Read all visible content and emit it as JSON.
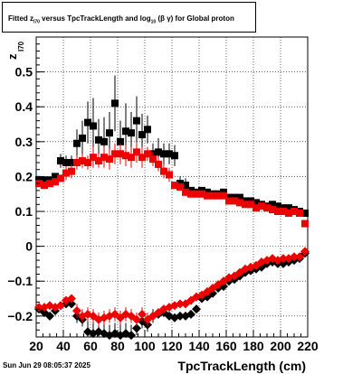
{
  "title": {
    "prefix": "Fitted  z",
    "z_sub": "I70",
    "middle": "  versus TpcTrackLength and log",
    "log_sub": "10",
    "suffix": " (β  γ) for Global proton"
  },
  "datestamp": "Sun Jun 29 08:05:37 2025",
  "chart_data": {
    "type": "scatter",
    "xlabel": "TpcTrackLength (cm)",
    "ylabel": "z",
    "ylabel_sub": "I70",
    "xlim": [
      20,
      220
    ],
    "ylim": [
      -0.26,
      0.6
    ],
    "xticks": [
      20,
      40,
      60,
      80,
      100,
      120,
      140,
      160,
      180,
      200,
      220
    ],
    "xtick_labels": [
      "20",
      "40",
      "60",
      "80",
      "100",
      "120",
      "140",
      "160",
      "180",
      "200",
      "220"
    ],
    "yticks": [
      -0.2,
      -0.1,
      0,
      0.1,
      0.2,
      0.3,
      0.4,
      0.5
    ],
    "ytick_labels": [
      "−0.2",
      "−0.1",
      "0",
      "0.1",
      "0.2",
      "0.3",
      "0.4",
      "0.5"
    ],
    "grid": true,
    "series": [
      {
        "color": "#000000",
        "marker": "square",
        "x": [
          22,
          26,
          30,
          34,
          38,
          42,
          46,
          50,
          54,
          58,
          62,
          66,
          70,
          74,
          78,
          82,
          86,
          90,
          94,
          98,
          102,
          106,
          110,
          114,
          118,
          122,
          126,
          130,
          134,
          138,
          142,
          146,
          150,
          154,
          158,
          162,
          166,
          170,
          174,
          178,
          182,
          186,
          190,
          194,
          198,
          202,
          206,
          210,
          214,
          218
        ],
        "y": [
          0.19,
          0.19,
          0.19,
          0.2,
          0.245,
          0.24,
          0.24,
          0.295,
          0.31,
          0.355,
          0.345,
          0.305,
          0.3,
          0.325,
          0.41,
          0.3,
          0.33,
          0.325,
          0.36,
          0.32,
          0.335,
          0.265,
          0.27,
          0.265,
          0.265,
          0.26,
          0.18,
          0.175,
          0.16,
          0.155,
          0.16,
          0.155,
          0.15,
          0.15,
          0.155,
          0.14,
          0.14,
          0.14,
          0.13,
          0.13,
          0.125,
          0.12,
          0.115,
          0.12,
          0.115,
          0.11,
          0.11,
          0.105,
          0.1,
          0.095
        ],
        "err": [
          0.01,
          0.01,
          0.01,
          0.01,
          0.02,
          0.02,
          0.02,
          0.04,
          0.05,
          0.06,
          0.08,
          0.06,
          0.07,
          0.06,
          0.08,
          0.06,
          0.08,
          0.06,
          0.07,
          0.06,
          0.04,
          0.03,
          0.04,
          0.03,
          0.03,
          0.03,
          0.02,
          0.02,
          0.01,
          0.01,
          0.01,
          0.01,
          0.01,
          0.01,
          0.01,
          0.01,
          0.01,
          0.01,
          0.01,
          0.01,
          0.01,
          0.01,
          0.01,
          0.01,
          0.01,
          0.01,
          0.01,
          0.01,
          0.01,
          0.01
        ]
      },
      {
        "color": "#ee0000",
        "marker": "square",
        "x": [
          22,
          26,
          30,
          34,
          38,
          42,
          46,
          50,
          54,
          58,
          62,
          66,
          70,
          74,
          78,
          82,
          86,
          90,
          94,
          98,
          102,
          106,
          110,
          114,
          118,
          122,
          126,
          130,
          134,
          138,
          142,
          146,
          150,
          154,
          158,
          162,
          166,
          170,
          174,
          178,
          182,
          186,
          190,
          194,
          198,
          202,
          206,
          210,
          214,
          218
        ],
        "y": [
          0.18,
          0.175,
          0.18,
          0.185,
          0.195,
          0.21,
          0.215,
          0.24,
          0.245,
          0.24,
          0.255,
          0.245,
          0.255,
          0.25,
          0.265,
          0.265,
          0.26,
          0.255,
          0.27,
          0.255,
          0.265,
          0.25,
          0.235,
          0.215,
          0.205,
          0.175,
          0.17,
          0.155,
          0.15,
          0.15,
          0.15,
          0.145,
          0.145,
          0.145,
          0.145,
          0.13,
          0.13,
          0.125,
          0.12,
          0.12,
          0.11,
          0.115,
          0.11,
          0.105,
          0.1,
          0.1,
          0.095,
          0.1,
          0.095,
          0.065
        ],
        "err": [
          0.01,
          0.01,
          0.01,
          0.01,
          0.01,
          0.02,
          0.02,
          0.02,
          0.02,
          0.02,
          0.03,
          0.02,
          0.03,
          0.03,
          0.03,
          0.03,
          0.03,
          0.03,
          0.03,
          0.03,
          0.02,
          0.02,
          0.02,
          0.02,
          0.02,
          0.01,
          0.01,
          0.01,
          0.01,
          0.01,
          0.01,
          0.01,
          0.01,
          0.01,
          0.01,
          0.01,
          0.01,
          0.01,
          0.01,
          0.01,
          0.01,
          0.01,
          0.01,
          0.01,
          0.01,
          0.01,
          0.01,
          0.01,
          0.01,
          0.01
        ]
      },
      {
        "color": "#000000",
        "marker": "diamond",
        "x": [
          22,
          26,
          30,
          34,
          38,
          42,
          46,
          50,
          54,
          58,
          62,
          66,
          70,
          74,
          78,
          82,
          86,
          90,
          94,
          98,
          102,
          106,
          110,
          114,
          118,
          122,
          126,
          130,
          134,
          138,
          142,
          146,
          150,
          154,
          158,
          162,
          166,
          170,
          174,
          178,
          182,
          186,
          190,
          194,
          198,
          202,
          206,
          210,
          214,
          218
        ],
        "y": [
          -0.18,
          -0.19,
          -0.2,
          -0.185,
          -0.17,
          -0.165,
          -0.165,
          -0.2,
          -0.21,
          -0.245,
          -0.25,
          -0.245,
          -0.25,
          -0.255,
          -0.25,
          -0.255,
          -0.25,
          -0.255,
          -0.235,
          -0.215,
          -0.225,
          -0.2,
          -0.195,
          -0.19,
          -0.2,
          -0.205,
          -0.2,
          -0.2,
          -0.195,
          -0.18,
          -0.15,
          -0.145,
          -0.135,
          -0.12,
          -0.115,
          -0.1,
          -0.095,
          -0.085,
          -0.075,
          -0.07,
          -0.065,
          -0.06,
          -0.05,
          -0.045,
          -0.05,
          -0.05,
          -0.045,
          -0.04,
          -0.035,
          -0.02
        ],
        "err": [
          0.01,
          0.01,
          0.01,
          0.01,
          0.01,
          0.01,
          0.01,
          0.02,
          0.02,
          0.03,
          0.03,
          0.03,
          0.03,
          0.03,
          0.03,
          0.03,
          0.03,
          0.03,
          0.02,
          0.02,
          0.02,
          0.02,
          0.01,
          0.01,
          0.01,
          0.01,
          0.01,
          0.01,
          0.01,
          0.01,
          0.01,
          0.01,
          0.01,
          0.01,
          0.01,
          0.01,
          0.01,
          0.01,
          0.01,
          0.01,
          0.01,
          0.01,
          0.01,
          0.01,
          0.01,
          0.01,
          0.01,
          0.01,
          0.01,
          0.01
        ]
      },
      {
        "color": "#ee0000",
        "marker": "diamond",
        "x": [
          22,
          26,
          30,
          34,
          38,
          42,
          46,
          50,
          54,
          58,
          62,
          66,
          70,
          74,
          78,
          82,
          86,
          90,
          94,
          98,
          102,
          106,
          110,
          114,
          118,
          122,
          126,
          130,
          134,
          138,
          142,
          146,
          150,
          154,
          158,
          162,
          166,
          170,
          174,
          178,
          182,
          186,
          190,
          194,
          198,
          202,
          206,
          210,
          214,
          218
        ],
        "y": [
          -0.175,
          -0.175,
          -0.17,
          -0.175,
          -0.17,
          -0.155,
          -0.15,
          -0.185,
          -0.2,
          -0.195,
          -0.2,
          -0.21,
          -0.205,
          -0.2,
          -0.195,
          -0.205,
          -0.195,
          -0.2,
          -0.21,
          -0.195,
          -0.21,
          -0.2,
          -0.19,
          -0.18,
          -0.175,
          -0.17,
          -0.165,
          -0.165,
          -0.155,
          -0.145,
          -0.14,
          -0.13,
          -0.12,
          -0.11,
          -0.1,
          -0.09,
          -0.085,
          -0.075,
          -0.065,
          -0.06,
          -0.055,
          -0.045,
          -0.04,
          -0.035,
          -0.04,
          -0.035,
          -0.035,
          -0.03,
          -0.03,
          -0.015
        ],
        "err": [
          0.01,
          0.01,
          0.01,
          0.01,
          0.01,
          0.01,
          0.01,
          0.02,
          0.02,
          0.02,
          0.02,
          0.02,
          0.02,
          0.02,
          0.02,
          0.02,
          0.02,
          0.02,
          0.02,
          0.02,
          0.02,
          0.01,
          0.01,
          0.01,
          0.01,
          0.01,
          0.01,
          0.01,
          0.01,
          0.01,
          0.01,
          0.01,
          0.01,
          0.01,
          0.01,
          0.01,
          0.01,
          0.01,
          0.01,
          0.01,
          0.01,
          0.01,
          0.01,
          0.01,
          0.01,
          0.01,
          0.01,
          0.01,
          0.01,
          0.01
        ]
      }
    ]
  }
}
